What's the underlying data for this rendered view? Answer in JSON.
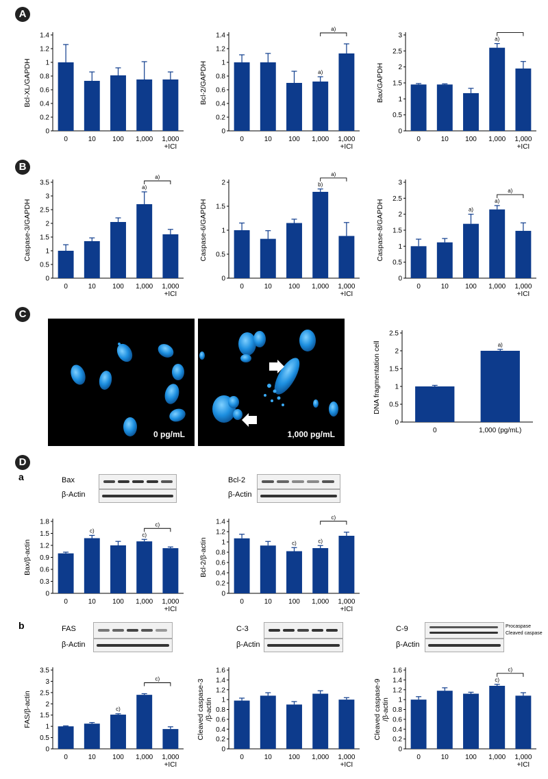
{
  "panels": {
    "A": "A",
    "B": "B",
    "C": "C",
    "D": "D",
    "Da": "a",
    "Db": "b"
  },
  "micrographs": [
    {
      "label": "0 pg/mL"
    },
    {
      "label": "1,000 pg/mL"
    }
  ],
  "blots": [
    {
      "rows": [
        "Bax",
        "β-Actin"
      ]
    },
    {
      "rows": [
        "Bcl-2",
        "β-Actin"
      ]
    },
    {
      "rows": [
        "FAS",
        "β-Actin"
      ]
    },
    {
      "rows": [
        "C-3",
        "β-Actin"
      ]
    },
    {
      "rows": [
        "C-9",
        "β-Actin"
      ],
      "notes": [
        "Procaspase",
        "Cleaved caspase"
      ]
    }
  ],
  "chart_data": [
    {
      "id": "a1",
      "type": "bar",
      "categories": [
        "0",
        "10",
        "100",
        "1,000",
        "1,000\n+ICI"
      ],
      "ylabel": "Bcl-XL/GAPDH",
      "ylim": [
        0,
        1.4
      ],
      "yticks": [
        0,
        0.2,
        0.4,
        0.6,
        0.8,
        1,
        1.2,
        1.4
      ],
      "values": [
        1.0,
        0.73,
        0.81,
        0.75,
        0.75
      ],
      "errors": [
        0.26,
        0.13,
        0.11,
        0.26,
        0.11
      ],
      "marks": [
        null,
        null,
        null,
        null,
        null
      ],
      "brackets": []
    },
    {
      "id": "a2",
      "type": "bar",
      "categories": [
        "0",
        "10",
        "100",
        "1,000",
        "1,000\n+ICI"
      ],
      "ylabel": "Bcl-2/GAPDH",
      "ylim": [
        0,
        1.4
      ],
      "yticks": [
        0,
        0.2,
        0.4,
        0.6,
        0.8,
        1,
        1.2,
        1.4
      ],
      "values": [
        1.0,
        1.0,
        0.7,
        0.72,
        1.13
      ],
      "errors": [
        0.11,
        0.13,
        0.17,
        0.07,
        0.14
      ],
      "marks": [
        null,
        null,
        null,
        "a)",
        null
      ],
      "brackets": [
        {
          "from": 3,
          "to": 4,
          "label": "a)"
        }
      ]
    },
    {
      "id": "a3",
      "type": "bar",
      "categories": [
        "0",
        "10",
        "100",
        "1,000",
        "1,000\n+ICI"
      ],
      "ylabel": "Bax/GAPDH",
      "ylim": [
        0,
        3
      ],
      "yticks": [
        0,
        0.5,
        1,
        1.5,
        2,
        2.5,
        3
      ],
      "values": [
        1.45,
        1.45,
        1.18,
        2.6,
        1.95
      ],
      "errors": [
        0.03,
        0.02,
        0.15,
        0.13,
        0.22
      ],
      "marks": [
        null,
        null,
        null,
        "a)",
        null
      ],
      "brackets": [
        {
          "from": 3,
          "to": 4,
          "label": ""
        }
      ]
    },
    {
      "id": "b1",
      "type": "bar",
      "categories": [
        "0",
        "10",
        "100",
        "1,000",
        "1,000\n+ICI"
      ],
      "ylabel": "Caspase-3/GAPDH",
      "ylim": [
        0,
        3.5
      ],
      "yticks": [
        0,
        0.5,
        1,
        1.5,
        2,
        2.5,
        3,
        3.5
      ],
      "values": [
        1.0,
        1.35,
        2.05,
        2.7,
        1.6
      ],
      "errors": [
        0.22,
        0.12,
        0.15,
        0.45,
        0.18
      ],
      "marks": [
        null,
        null,
        null,
        "a)",
        null
      ],
      "brackets": [
        {
          "from": 3,
          "to": 4,
          "label": "a)"
        }
      ]
    },
    {
      "id": "b2",
      "type": "bar",
      "categories": [
        "0",
        "10",
        "100",
        "1,000",
        "1,000\n+ICI"
      ],
      "ylabel": "Caspase-6/GAPDH",
      "ylim": [
        0,
        2
      ],
      "yticks": [
        0,
        0.5,
        1,
        1.5,
        2
      ],
      "values": [
        1.0,
        0.82,
        1.15,
        1.8,
        0.88
      ],
      "errors": [
        0.15,
        0.17,
        0.08,
        0.06,
        0.28
      ],
      "marks": [
        null,
        null,
        null,
        "b)",
        null
      ],
      "brackets": [
        {
          "from": 3,
          "to": 4,
          "label": "a)"
        }
      ]
    },
    {
      "id": "b3",
      "type": "bar",
      "categories": [
        "0",
        "10",
        "100",
        "1,000",
        "1,000\n+ICI"
      ],
      "ylabel": "Caspase-8/GAPDH",
      "ylim": [
        0,
        3
      ],
      "yticks": [
        0,
        0.5,
        1,
        1.5,
        2,
        2.5,
        3
      ],
      "values": [
        1.0,
        1.12,
        1.7,
        2.15,
        1.48
      ],
      "errors": [
        0.22,
        0.12,
        0.3,
        0.12,
        0.25
      ],
      "marks": [
        null,
        null,
        "a)",
        "a)",
        null
      ],
      "brackets": [
        {
          "from": 3,
          "to": 4,
          "label": "a)"
        }
      ]
    },
    {
      "id": "c1",
      "type": "bar",
      "categories": [
        "0",
        "1,000 (pg/mL)"
      ],
      "ylabel": "DNA fragmentation cell",
      "ylim": [
        0,
        2.5
      ],
      "yticks": [
        0,
        0.5,
        1,
        1.5,
        2,
        2.5
      ],
      "values": [
        1.0,
        2.0
      ],
      "errors": [
        0.03,
        0.04
      ],
      "marks": [
        null,
        "a)"
      ],
      "brackets": []
    },
    {
      "id": "d1",
      "type": "bar",
      "categories": [
        "0",
        "10",
        "100",
        "1,000",
        "1,000\n+ICI"
      ],
      "ylabel": "Bax/β-actin",
      "ylim": [
        0,
        1.8
      ],
      "yticks": [
        0,
        0.3,
        0.6,
        0.9,
        1.2,
        1.5,
        1.8
      ],
      "values": [
        1.0,
        1.38,
        1.2,
        1.3,
        1.13
      ],
      "errors": [
        0.03,
        0.07,
        0.1,
        0.05,
        0.03
      ],
      "marks": [
        null,
        "c)",
        null,
        "c)",
        null
      ],
      "brackets": [
        {
          "from": 3,
          "to": 4,
          "label": "c)"
        }
      ]
    },
    {
      "id": "d2",
      "type": "bar",
      "categories": [
        "0",
        "10",
        "100",
        "1,000",
        "1,000\n+ICI"
      ],
      "ylabel": "Bcl-2/β-actin",
      "ylim": [
        0,
        1.4
      ],
      "yticks": [
        0,
        0.2,
        0.4,
        0.6,
        0.8,
        1,
        1.2,
        1.4
      ],
      "values": [
        1.07,
        0.93,
        0.82,
        0.88,
        1.12
      ],
      "errors": [
        0.08,
        0.08,
        0.07,
        0.05,
        0.07
      ],
      "marks": [
        null,
        null,
        "c)",
        "c)",
        null
      ],
      "brackets": [
        {
          "from": 3,
          "to": 4,
          "label": "c)"
        }
      ]
    },
    {
      "id": "e1",
      "type": "bar",
      "categories": [
        "0",
        "10",
        "100",
        "1,000",
        "1,000\n+ICI"
      ],
      "ylabel": "FAS/β-actin",
      "ylim": [
        0,
        3.5
      ],
      "yticks": [
        0,
        0.5,
        1,
        1.5,
        2,
        2.5,
        3,
        3.5
      ],
      "values": [
        1.0,
        1.12,
        1.52,
        2.4,
        0.88
      ],
      "errors": [
        0.02,
        0.05,
        0.04,
        0.05,
        0.1
      ],
      "marks": [
        null,
        null,
        "c)",
        null,
        null
      ],
      "brackets": [
        {
          "from": 3,
          "to": 4,
          "label": "c)"
        }
      ]
    },
    {
      "id": "e2",
      "type": "bar",
      "categories": [
        "0",
        "10",
        "100",
        "1,000",
        "1,000\n+ICI"
      ],
      "ylabel": "Cleaved caspase-3\n/β-actin",
      "ylim": [
        0,
        1.6
      ],
      "yticks": [
        0,
        0.2,
        0.4,
        0.6,
        0.8,
        1,
        1.2,
        1.4,
        1.6
      ],
      "values": [
        0.98,
        1.08,
        0.9,
        1.12,
        1.0
      ],
      "errors": [
        0.05,
        0.06,
        0.06,
        0.06,
        0.04
      ],
      "marks": [
        null,
        null,
        null,
        null,
        null
      ],
      "brackets": []
    },
    {
      "id": "e3",
      "type": "bar",
      "categories": [
        "0",
        "10",
        "100",
        "1,000",
        "1,000\n+ICI"
      ],
      "ylabel": "Cleaved caspase-9\n/β-actin",
      "ylim": [
        0,
        1.6
      ],
      "yticks": [
        0,
        0.2,
        0.4,
        0.6,
        0.8,
        1,
        1.2,
        1.4,
        1.6
      ],
      "values": [
        1.0,
        1.18,
        1.12,
        1.28,
        1.08
      ],
      "errors": [
        0.06,
        0.06,
        0.03,
        0.03,
        0.06
      ],
      "marks": [
        null,
        null,
        null,
        "c)",
        null
      ],
      "brackets": [
        {
          "from": 3,
          "to": 4,
          "label": "c)"
        }
      ]
    }
  ]
}
